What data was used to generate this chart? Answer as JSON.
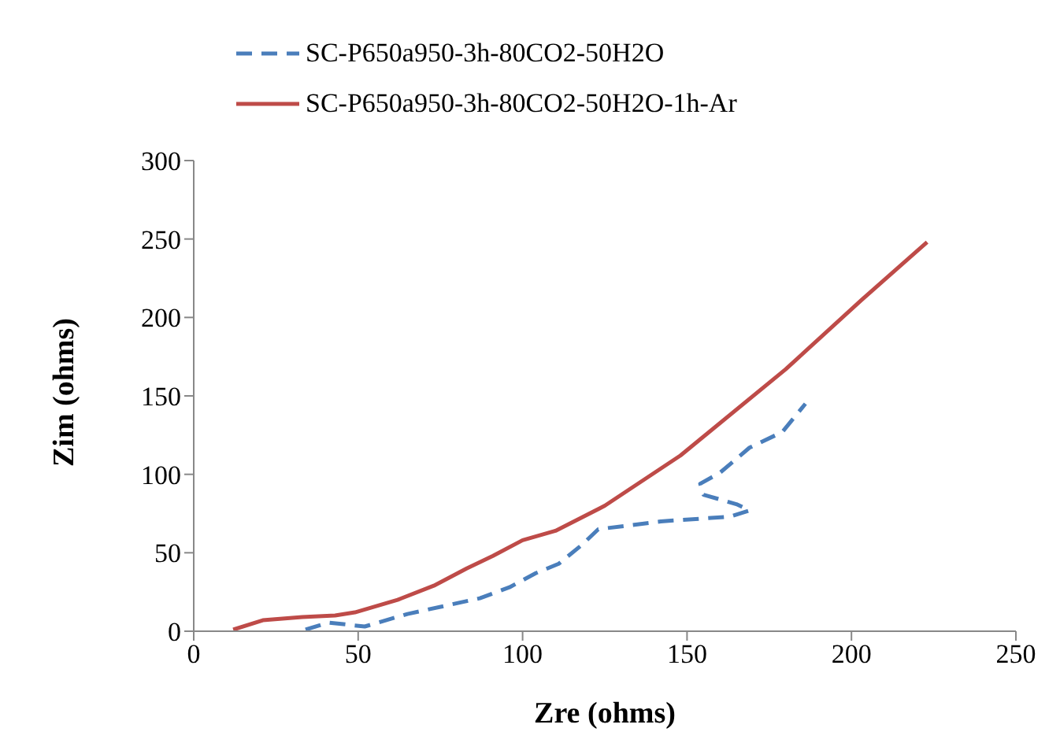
{
  "chart_data": {
    "type": "line",
    "xlabel": "Zre (ohms)",
    "ylabel": "Zim (ohms)",
    "xlim": [
      0,
      250
    ],
    "xticks": [
      0,
      50,
      100,
      150,
      200,
      250
    ],
    "ylim": [
      0,
      300
    ],
    "yticks": [
      0,
      50,
      100,
      150,
      200,
      250,
      300
    ],
    "grid": false,
    "legend": "top left",
    "marker": "none",
    "series": [
      {
        "name": "SC-P650a950-3h-80CO2-50H2O",
        "color": "#4a7ebb",
        "line_style": "dashed",
        "x": [
          34,
          41,
          52,
          65,
          87,
          96,
          104,
          111,
          118,
          123,
          142,
          163,
          169,
          165,
          155,
          154,
          160,
          169,
          179,
          186
        ],
        "values": [
          1,
          5.5,
          3,
          11,
          21,
          28,
          37,
          43,
          55,
          65,
          70,
          73,
          77,
          81,
          87,
          94,
          101,
          117,
          127,
          145
        ]
      },
      {
        "name": "SC-P650a950-3h-80CO2-50H2O-1h-Ar",
        "color": "#be4b48",
        "line_style": "solid",
        "x": [
          12,
          21,
          33,
          43,
          49,
          62,
          73,
          83,
          91,
          100,
          110,
          125,
          148,
          180,
          203,
          223
        ],
        "values": [
          1,
          7,
          9,
          10,
          12,
          20,
          29,
          40,
          48,
          58,
          64,
          80,
          112,
          167,
          211,
          248
        ]
      }
    ]
  }
}
